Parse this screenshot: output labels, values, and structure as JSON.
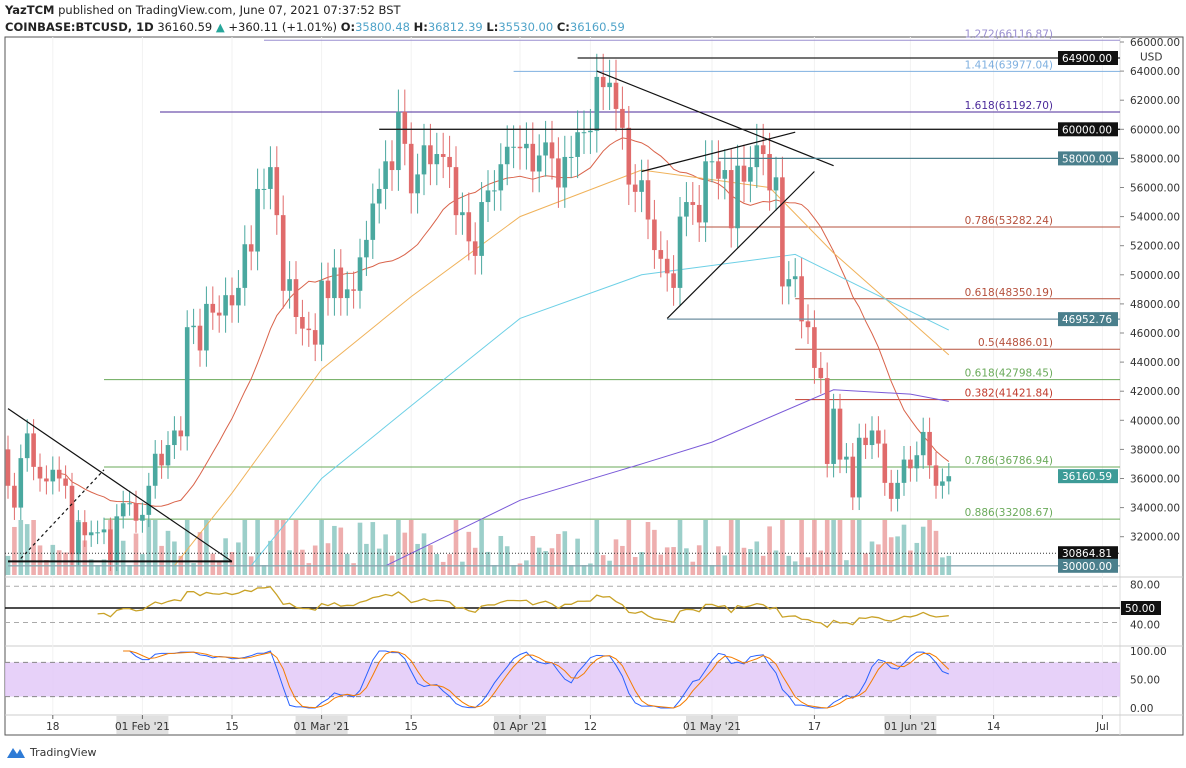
{
  "header": {
    "publisher": "YazTCM",
    "published_text": "published on TradingView.com, June 07, 2021 07:37:52 BST",
    "symbol": "COINBASE:BTCUSD, 1D",
    "last": "36160.59",
    "change": "+360.11 (+1.01%)",
    "o_label": "O:",
    "o": "35800.48",
    "h_label": "H:",
    "h": "36812.39",
    "l_label": "L:",
    "l": "35530.00",
    "c_label": "C:",
    "c": "36160.59"
  },
  "footer": {
    "brand": "TradingView"
  },
  "colors": {
    "up": "#4aa89f",
    "down": "#e06b6b",
    "ma20": "#d9634a",
    "ma50": "#f0b25a",
    "ma100": "#6dd0e6",
    "ma200": "#7a5ad8",
    "rsi": "#c9a227",
    "stoch_k": "#2962ff",
    "stoch_d": "#f57c00",
    "stoch_band": "#e1c6f7"
  },
  "chart_data": {
    "type": "candlestick",
    "title": "COINBASE:BTCUSD, 1D",
    "currency": "USD",
    "start_date": "2021-01-11",
    "closes": [
      35500,
      34000,
      37400,
      39100,
      36800,
      36000,
      35800,
      36600,
      36000,
      35500,
      30800,
      33000,
      32100,
      32300,
      32300,
      32500,
      30400,
      33400,
      34300,
      34300,
      33100,
      33500,
      35500,
      37700,
      36900,
      38300,
      39300,
      38900,
      46400,
      46500,
      44800,
      48000,
      47400,
      47200,
      48600,
      47900,
      49100,
      52100,
      51600,
      55900,
      55900,
      57400,
      54100,
      48900,
      49700,
      47100,
      46300,
      46200,
      45200,
      49600,
      48400,
      50500,
      48400,
      49000,
      48900,
      51200,
      52400,
      54900,
      55900,
      57800,
      57200,
      61200,
      59000,
      55600,
      56900,
      58900,
      57600,
      58300,
      58100,
      57400,
      54100,
      54300,
      52300,
      51300,
      55000,
      55800,
      55800,
      57600,
      58800,
      58800,
      58700,
      59000,
      57100,
      58200,
      59100,
      58000,
      56000,
      58100,
      58100,
      59800,
      59800,
      59900,
      63600,
      62900,
      63200,
      61400,
      60100,
      56200,
      55700,
      56500,
      53800,
      51700,
      51100,
      50100,
      49100,
      54000,
      55000,
      54800,
      53600,
      57800,
      57800,
      56600,
      57200,
      53200,
      57500,
      56400,
      57400,
      58900,
      58300,
      55800,
      56700,
      49200,
      49700,
      49900,
      46800,
      46400,
      43600,
      42900,
      37000,
      40800,
      37300,
      37500,
      34700,
      38800,
      38300,
      39300,
      38400,
      35700,
      34600,
      35700,
      37300,
      36700,
      37600,
      39200,
      36900,
      35500,
      35800,
      36160.59
    ],
    "moving_averages": [
      {
        "id": "ma50",
        "points": [
          [
            "2021-02-06",
            30000
          ],
          [
            "2021-02-15",
            35000
          ],
          [
            "2021-03-01",
            43500
          ],
          [
            "2021-03-15",
            48500
          ],
          [
            "2021-04-01",
            54000
          ],
          [
            "2021-04-20",
            57200
          ],
          [
            "2021-05-10",
            56000
          ],
          [
            "2021-05-20",
            51500
          ],
          [
            "2021-06-07",
            44500
          ]
        ]
      },
      {
        "id": "ma100",
        "points": [
          [
            "2021-02-18",
            30000
          ],
          [
            "2021-03-01",
            36000
          ],
          [
            "2021-03-15",
            41000
          ],
          [
            "2021-04-01",
            47000
          ],
          [
            "2021-04-20",
            50000
          ],
          [
            "2021-05-14",
            51400
          ],
          [
            "2021-05-25",
            49000
          ],
          [
            "2021-06-07",
            46200
          ]
        ]
      },
      {
        "id": "ma200",
        "points": [
          [
            "2021-03-11",
            30000
          ],
          [
            "2021-04-01",
            34500
          ],
          [
            "2021-04-20",
            37000
          ],
          [
            "2021-05-01",
            38500
          ],
          [
            "2021-05-20",
            42100
          ],
          [
            "2021-06-01",
            41800
          ],
          [
            "2021-06-07",
            41300
          ]
        ]
      }
    ],
    "price_axis": [
      "66000.00",
      "64000.00",
      "62000.00",
      "60000.00",
      "58000.00",
      "56000.00",
      "54000.00",
      "52000.00",
      "50000.00",
      "48000.00",
      "46000.00",
      "44000.00",
      "42000.00",
      "40000.00",
      "38000.00",
      "36000.00",
      "34000.00",
      "32000.00"
    ],
    "time_axis": [
      {
        "label": "18",
        "date": "2021-01-18",
        "major": false
      },
      {
        "label": "01 Feb '21",
        "date": "2021-02-01",
        "major": true
      },
      {
        "label": "15",
        "date": "2021-02-15",
        "major": false
      },
      {
        "label": "01 Mar '21",
        "date": "2021-03-01",
        "major": true
      },
      {
        "label": "15",
        "date": "2021-03-15",
        "major": false
      },
      {
        "label": "01 Apr '21",
        "date": "2021-04-01",
        "major": true
      },
      {
        "label": "12",
        "date": "2021-04-12",
        "major": false
      },
      {
        "label": "01 May '21",
        "date": "2021-05-01",
        "major": true
      },
      {
        "label": "17",
        "date": "2021-05-17",
        "major": false
      },
      {
        "label": "01 Jun '21",
        "date": "2021-06-01",
        "major": true
      },
      {
        "label": "14",
        "date": "2021-06-14",
        "major": false
      },
      {
        "label": "Jul",
        "date": "2021-07-01",
        "major": false
      }
    ],
    "levels": [
      {
        "label": "1.272(66116.87)",
        "price": 66116.87,
        "from": "2021-02-20",
        "color": "#9a8fd0"
      },
      {
        "label": "1.414(63977.04)",
        "price": 63977.04,
        "from": "2021-03-31",
        "color": "#7fb0e0"
      },
      {
        "label": "1.618(61192.70)",
        "price": 61192.7,
        "from": "2021-01-33",
        "color": "#4b2a9a"
      },
      {
        "label": "0.786(53282.24)",
        "price": 53282.24,
        "from": "2021-04-29",
        "color": "#b5503c"
      },
      {
        "label": "0.618(48350.19)",
        "price": 48350.19,
        "from": "2021-05-14",
        "color": "#b5503c"
      },
      {
        "label": "0.5(44886.01)",
        "price": 44886.01,
        "from": "2021-05-14",
        "color": "#b5503c"
      },
      {
        "label": "0.618(42798.45)",
        "price": 42798.45,
        "from": "2021-01-26",
        "color": "#6aaa5a"
      },
      {
        "label": "0.382(41421.84)",
        "price": 41421.84,
        "from": "2021-05-14",
        "color": "#c0392b"
      },
      {
        "label": "0.786(36786.94)",
        "price": 36786.94,
        "from": "2021-01-26",
        "color": "#6aaa5a"
      },
      {
        "label": "0.886(33208.67)",
        "price": 33208.67,
        "from": "2021-01-26",
        "color": "#6aaa5a"
      }
    ],
    "price_tags": [
      {
        "label": "64900.00",
        "price": 64900,
        "from": "2021-04-10",
        "bg": "#111111",
        "line": "#222"
      },
      {
        "label": "60000.00",
        "price": 60000,
        "from": "2021-03-10",
        "bg": "#111111",
        "line": "#222"
      },
      {
        "label": "58000.00",
        "price": 58000,
        "from": "2021-05-02",
        "bg": "#4a7f8c",
        "line": "#4a7f8c"
      },
      {
        "label": "46952.76",
        "price": 46952.76,
        "from": "2021-04-24",
        "bg": "#4a7f8c",
        "line": "#6f8fa0"
      },
      {
        "label": "36160.59",
        "price": 36160.59,
        "from": null,
        "bg": "#3d9b97",
        "line": null
      },
      {
        "label": "30864.81",
        "price": 30864.81,
        "from": "2021-01-11",
        "bg": "#111111",
        "line": "dotted"
      },
      {
        "label": "30000.00",
        "price": 30000,
        "from": "2021-01-11",
        "bg": "#4a7f8c",
        "line": "#8aa6b0"
      }
    ],
    "trendlines": [
      [
        [
          "2021-04-13",
          64000
        ],
        [
          "2021-05-20",
          57500
        ]
      ],
      [
        [
          "2021-04-20",
          57100
        ],
        [
          "2021-05-14",
          59800
        ]
      ],
      [
        [
          "2021-04-24",
          47000
        ],
        [
          "2021-05-17",
          57100
        ]
      ],
      [
        [
          "2021-01-11",
          40800
        ],
        [
          "2021-02-15",
          30300
        ]
      ],
      [
        [
          "2021-01-11",
          30300
        ],
        [
          "2021-02-15",
          30300
        ]
      ],
      [
        [
          "2021-01-13",
          30500
        ],
        [
          "2021-01-26",
          36600
        ]
      ]
    ],
    "rsi": {
      "period": 14,
      "axis": [
        "80.00",
        "50.00",
        "40.00"
      ],
      "level_tag": "50.00",
      "levels": [
        80,
        50,
        30
      ]
    },
    "stoch_rsi": {
      "axis": [
        "100.00",
        "50.00",
        "0.00"
      ],
      "band": [
        20,
        80
      ]
    }
  }
}
